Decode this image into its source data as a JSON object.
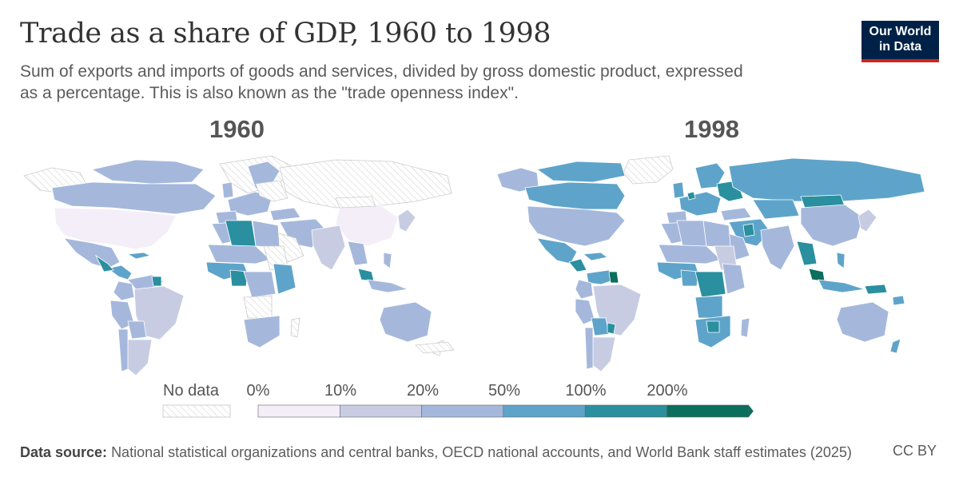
{
  "header": {
    "title": "Trade as a share of GDP, 1960 to 1998",
    "subtitle": "Sum of exports and imports of goods and services, divided by gross domestic product, expressed as a percentage. This is also known as the \"trade openness index\".",
    "logo_line1": "Our World",
    "logo_line2": "in Data"
  },
  "maps": [
    {
      "year_label": "1960"
    },
    {
      "year_label": "1998"
    }
  ],
  "legend": {
    "no_data_label": "No data",
    "ticks": [
      "0%",
      "10%",
      "20%",
      "50%",
      "100%",
      "200%"
    ],
    "bin_colors": [
      "#f3eef7",
      "#c8cce3",
      "#a5b8dc",
      "#5ea4ca",
      "#2a8f9e",
      "#0c6e5d"
    ]
  },
  "footer": {
    "source_label": "Data source:",
    "source_text": "National statistical organizations and central banks, OECD national accounts, and World Bank staff estimates (2025)",
    "license": "CC BY"
  },
  "colors": {
    "no_data_hatch": "#cfcfcf",
    "title": "#333333",
    "logo_bg": "#002147",
    "logo_accent": "#ce261e"
  }
}
